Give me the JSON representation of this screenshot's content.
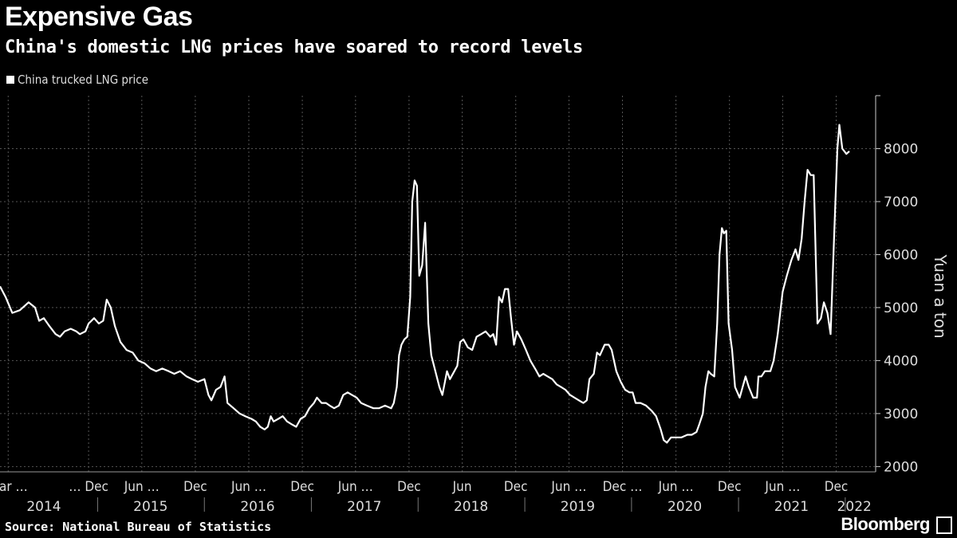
{
  "header": {
    "title": "Expensive Gas",
    "subtitle": "China's domestic LNG prices have soared to record levels"
  },
  "footer": {
    "source": "Source: National Bureau of Statistics",
    "brand": "Bloomberg"
  },
  "colors": {
    "background": "#000000",
    "line": "#ffffff",
    "grid": "#555555"
  },
  "chart_data": {
    "type": "line",
    "ylabel": "Yuan a ton",
    "ylim": [
      1900,
      9000
    ],
    "yticks": [
      2000,
      3000,
      4000,
      5000,
      6000,
      7000,
      8000
    ],
    "grid": true,
    "legend_placement": "top-left",
    "x_range": [
      "2014-02-01",
      "2022-04-15"
    ],
    "x_tick_labels": [
      {
        "label": "Mar …",
        "date": "2014-03-01"
      },
      {
        "label": "… Dec",
        "date": "2014-12-01"
      },
      {
        "label": "Jun …",
        "date": "2015-06-01"
      },
      {
        "label": "Dec",
        "date": "2015-12-01"
      },
      {
        "label": "Jun …",
        "date": "2016-06-01"
      },
      {
        "label": "Dec",
        "date": "2016-12-01"
      },
      {
        "label": "Jun …",
        "date": "2017-06-01"
      },
      {
        "label": "Dec",
        "date": "2017-12-01"
      },
      {
        "label": "Jun",
        "date": "2018-06-01"
      },
      {
        "label": "Dec",
        "date": "2018-12-01"
      },
      {
        "label": "Jun …",
        "date": "2019-06-01"
      },
      {
        "label": "Dec …",
        "date": "2019-12-01"
      },
      {
        "label": "Jun …",
        "date": "2020-06-01"
      },
      {
        "label": "Dec",
        "date": "2020-12-01"
      },
      {
        "label": "Jun …",
        "date": "2021-06-01"
      },
      {
        "label": "Dec",
        "date": "2021-12-01"
      }
    ],
    "year_labels": [
      {
        "label": "2014",
        "date": "2014-07-01"
      },
      {
        "label": "2015",
        "date": "2015-07-01"
      },
      {
        "label": "2016",
        "date": "2016-07-01"
      },
      {
        "label": "2017",
        "date": "2017-07-01"
      },
      {
        "label": "2018",
        "date": "2018-07-01"
      },
      {
        "label": "2019",
        "date": "2019-07-01"
      },
      {
        "label": "2020",
        "date": "2020-07-01"
      },
      {
        "label": "2021",
        "date": "2021-07-01"
      },
      {
        "label": "2022",
        "date": "2022-02-01"
      }
    ],
    "series": [
      {
        "name": "China trucked LNG price",
        "points": [
          [
            "2014-02-01",
            5400
          ],
          [
            "2014-02-20",
            5200
          ],
          [
            "2014-03-15",
            4900
          ],
          [
            "2014-04-10",
            4950
          ],
          [
            "2014-05-10",
            5100
          ],
          [
            "2014-06-01",
            5000
          ],
          [
            "2014-06-15",
            4750
          ],
          [
            "2014-07-01",
            4800
          ],
          [
            "2014-07-20",
            4650
          ],
          [
            "2014-08-10",
            4500
          ],
          [
            "2014-08-25",
            4450
          ],
          [
            "2014-09-10",
            4550
          ],
          [
            "2014-10-01",
            4600
          ],
          [
            "2014-10-20",
            4550
          ],
          [
            "2014-11-01",
            4500
          ],
          [
            "2014-11-20",
            4550
          ],
          [
            "2014-12-01",
            4700
          ],
          [
            "2014-12-20",
            4800
          ],
          [
            "2015-01-05",
            4700
          ],
          [
            "2015-01-20",
            4750
          ],
          [
            "2015-02-01",
            5150
          ],
          [
            "2015-02-15",
            5000
          ],
          [
            "2015-03-01",
            4650
          ],
          [
            "2015-03-20",
            4350
          ],
          [
            "2015-04-10",
            4200
          ],
          [
            "2015-05-01",
            4150
          ],
          [
            "2015-05-20",
            4000
          ],
          [
            "2015-06-10",
            3950
          ],
          [
            "2015-07-01",
            3850
          ],
          [
            "2015-07-20",
            3800
          ],
          [
            "2015-08-10",
            3850
          ],
          [
            "2015-09-01",
            3800
          ],
          [
            "2015-09-20",
            3750
          ],
          [
            "2015-10-10",
            3800
          ],
          [
            "2015-11-01",
            3700
          ],
          [
            "2015-11-20",
            3650
          ],
          [
            "2015-12-10",
            3600
          ],
          [
            "2016-01-01",
            3650
          ],
          [
            "2016-01-15",
            3350
          ],
          [
            "2016-01-25",
            3250
          ],
          [
            "2016-02-10",
            3450
          ],
          [
            "2016-02-25",
            3500
          ],
          [
            "2016-03-10",
            3700
          ],
          [
            "2016-03-20",
            3200
          ],
          [
            "2016-04-10",
            3100
          ],
          [
            "2016-05-01",
            3000
          ],
          [
            "2016-05-20",
            2950
          ],
          [
            "2016-06-10",
            2900
          ],
          [
            "2016-06-25",
            2850
          ],
          [
            "2016-07-10",
            2750
          ],
          [
            "2016-07-25",
            2700
          ],
          [
            "2016-08-05",
            2750
          ],
          [
            "2016-08-15",
            2950
          ],
          [
            "2016-08-25",
            2850
          ],
          [
            "2016-09-10",
            2900
          ],
          [
            "2016-09-25",
            2950
          ],
          [
            "2016-10-10",
            2850
          ],
          [
            "2016-10-25",
            2800
          ],
          [
            "2016-11-10",
            2750
          ],
          [
            "2016-11-25",
            2900
          ],
          [
            "2016-12-10",
            2950
          ],
          [
            "2016-12-25",
            3100
          ],
          [
            "2017-01-10",
            3200
          ],
          [
            "2017-01-20",
            3300
          ],
          [
            "2017-02-05",
            3200
          ],
          [
            "2017-02-20",
            3200
          ],
          [
            "2017-03-05",
            3150
          ],
          [
            "2017-03-20",
            3100
          ],
          [
            "2017-04-05",
            3150
          ],
          [
            "2017-04-20",
            3350
          ],
          [
            "2017-05-05",
            3400
          ],
          [
            "2017-05-20",
            3350
          ],
          [
            "2017-06-05",
            3300
          ],
          [
            "2017-06-20",
            3200
          ],
          [
            "2017-07-10",
            3150
          ],
          [
            "2017-08-01",
            3100
          ],
          [
            "2017-08-20",
            3100
          ],
          [
            "2017-09-10",
            3150
          ],
          [
            "2017-10-01",
            3100
          ],
          [
            "2017-10-10",
            3200
          ],
          [
            "2017-10-20",
            3500
          ],
          [
            "2017-10-28",
            4100
          ],
          [
            "2017-11-05",
            4300
          ],
          [
            "2017-11-15",
            4400
          ],
          [
            "2017-11-25",
            4450
          ],
          [
            "2017-12-05",
            5200
          ],
          [
            "2017-12-12",
            7000
          ],
          [
            "2017-12-20",
            7400
          ],
          [
            "2017-12-28",
            7300
          ],
          [
            "2018-01-05",
            5600
          ],
          [
            "2018-01-15",
            5800
          ],
          [
            "2018-01-25",
            6600
          ],
          [
            "2018-02-05",
            4700
          ],
          [
            "2018-02-15",
            4100
          ],
          [
            "2018-03-01",
            3800
          ],
          [
            "2018-03-15",
            3500
          ],
          [
            "2018-03-25",
            3350
          ],
          [
            "2018-04-10",
            3800
          ],
          [
            "2018-04-20",
            3650
          ],
          [
            "2018-05-05",
            3800
          ],
          [
            "2018-05-15",
            3900
          ],
          [
            "2018-05-25",
            4350
          ],
          [
            "2018-06-05",
            4400
          ],
          [
            "2018-06-20",
            4250
          ],
          [
            "2018-07-05",
            4200
          ],
          [
            "2018-07-20",
            4450
          ],
          [
            "2018-08-05",
            4500
          ],
          [
            "2018-08-20",
            4550
          ],
          [
            "2018-09-05",
            4450
          ],
          [
            "2018-09-15",
            4500
          ],
          [
            "2018-09-25",
            4300
          ],
          [
            "2018-10-05",
            5200
          ],
          [
            "2018-10-15",
            5100
          ],
          [
            "2018-10-25",
            5350
          ],
          [
            "2018-11-05",
            5350
          ],
          [
            "2018-11-15",
            4800
          ],
          [
            "2018-11-25",
            4300
          ],
          [
            "2018-12-05",
            4550
          ],
          [
            "2018-12-20",
            4400
          ],
          [
            "2019-01-05",
            4200
          ],
          [
            "2019-01-20",
            4000
          ],
          [
            "2019-02-05",
            3850
          ],
          [
            "2019-02-20",
            3700
          ],
          [
            "2019-03-05",
            3750
          ],
          [
            "2019-03-20",
            3700
          ],
          [
            "2019-04-05",
            3650
          ],
          [
            "2019-04-20",
            3550
          ],
          [
            "2019-05-05",
            3500
          ],
          [
            "2019-05-20",
            3450
          ],
          [
            "2019-06-05",
            3350
          ],
          [
            "2019-06-20",
            3300
          ],
          [
            "2019-07-05",
            3250
          ],
          [
            "2019-07-20",
            3200
          ],
          [
            "2019-08-01",
            3250
          ],
          [
            "2019-08-10",
            3650
          ],
          [
            "2019-08-25",
            3750
          ],
          [
            "2019-09-05",
            4150
          ],
          [
            "2019-09-15",
            4100
          ],
          [
            "2019-10-01",
            4300
          ],
          [
            "2019-10-15",
            4300
          ],
          [
            "2019-10-25",
            4200
          ],
          [
            "2019-11-10",
            3800
          ],
          [
            "2019-11-25",
            3600
          ],
          [
            "2019-12-10",
            3450
          ],
          [
            "2019-12-25",
            3400
          ],
          [
            "2020-01-05",
            3400
          ],
          [
            "2020-01-15",
            3200
          ],
          [
            "2020-02-01",
            3200
          ],
          [
            "2020-02-20",
            3150
          ],
          [
            "2020-03-10",
            3050
          ],
          [
            "2020-03-25",
            2950
          ],
          [
            "2020-04-10",
            2700
          ],
          [
            "2020-04-20",
            2500
          ],
          [
            "2020-05-01",
            2450
          ],
          [
            "2020-05-15",
            2550
          ],
          [
            "2020-06-01",
            2550
          ],
          [
            "2020-06-20",
            2550
          ],
          [
            "2020-07-10",
            2600
          ],
          [
            "2020-07-25",
            2600
          ],
          [
            "2020-08-10",
            2650
          ],
          [
            "2020-08-20",
            2800
          ],
          [
            "2020-09-01",
            3000
          ],
          [
            "2020-09-10",
            3500
          ],
          [
            "2020-09-20",
            3800
          ],
          [
            "2020-09-28",
            3750
          ],
          [
            "2020-10-10",
            3700
          ],
          [
            "2020-10-20",
            4700
          ],
          [
            "2020-10-28",
            6000
          ],
          [
            "2020-11-05",
            6500
          ],
          [
            "2020-11-12",
            6400
          ],
          [
            "2020-11-20",
            6450
          ],
          [
            "2020-11-28",
            4700
          ],
          [
            "2020-12-10",
            4200
          ],
          [
            "2020-12-20",
            3500
          ],
          [
            "2021-01-05",
            3300
          ],
          [
            "2021-01-15",
            3500
          ],
          [
            "2021-01-25",
            3700
          ],
          [
            "2021-02-05",
            3500
          ],
          [
            "2021-02-20",
            3300
          ],
          [
            "2021-03-05",
            3300
          ],
          [
            "2021-03-10",
            3700
          ],
          [
            "2021-03-20",
            3700
          ],
          [
            "2021-04-01",
            3800
          ],
          [
            "2021-04-20",
            3800
          ],
          [
            "2021-05-01",
            4000
          ],
          [
            "2021-05-15",
            4500
          ],
          [
            "2021-06-01",
            5300
          ],
          [
            "2021-06-15",
            5600
          ],
          [
            "2021-07-01",
            5900
          ],
          [
            "2021-07-15",
            6100
          ],
          [
            "2021-07-25",
            5900
          ],
          [
            "2021-08-05",
            6300
          ],
          [
            "2021-08-15",
            7000
          ],
          [
            "2021-08-25",
            7600
          ],
          [
            "2021-09-05",
            7500
          ],
          [
            "2021-09-15",
            7500
          ],
          [
            "2021-09-28",
            4700
          ],
          [
            "2021-10-10",
            4800
          ],
          [
            "2021-10-20",
            5100
          ],
          [
            "2021-11-01",
            4900
          ],
          [
            "2021-11-12",
            4500
          ],
          [
            "2021-11-25",
            6500
          ],
          [
            "2021-12-05",
            8000
          ],
          [
            "2021-12-12",
            8450
          ],
          [
            "2021-12-22",
            8000
          ],
          [
            "2022-01-05",
            7900
          ],
          [
            "2022-01-15",
            7950
          ]
        ]
      }
    ]
  }
}
